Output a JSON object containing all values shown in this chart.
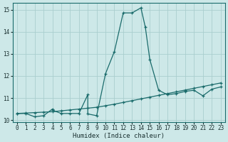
{
  "title": "",
  "xlabel": "Humidex (Indice chaleur)",
  "ylabel": "",
  "background_color": "#cde8e8",
  "line_color": "#1a6b6b",
  "grid_color": "#aacece",
  "line1_x": [
    0,
    1,
    2,
    3,
    4,
    4,
    5,
    6,
    7,
    8,
    8,
    9,
    10,
    11,
    12,
    13,
    14,
    14.5,
    15,
    16,
    17,
    18,
    19,
    20,
    21,
    22,
    23
  ],
  "line1_y": [
    10.3,
    10.3,
    10.15,
    10.2,
    10.5,
    10.45,
    10.3,
    10.3,
    10.3,
    11.15,
    10.28,
    10.2,
    12.1,
    13.1,
    14.85,
    14.85,
    15.08,
    14.2,
    12.75,
    11.35,
    11.15,
    11.2,
    11.3,
    11.35,
    11.1,
    11.4,
    11.5
  ],
  "line2_x": [
    0,
    1,
    2,
    3,
    4,
    5,
    6,
    7,
    8,
    9,
    10,
    11,
    12,
    13,
    14,
    15,
    16,
    17,
    18,
    19,
    20,
    21,
    22,
    23
  ],
  "line2_y": [
    10.3,
    10.32,
    10.34,
    10.36,
    10.38,
    10.42,
    10.46,
    10.5,
    10.54,
    10.58,
    10.65,
    10.72,
    10.8,
    10.88,
    10.96,
    11.04,
    11.12,
    11.2,
    11.28,
    11.36,
    11.44,
    11.52,
    11.6,
    11.68
  ],
  "xlim": [
    -0.5,
    23.5
  ],
  "ylim": [
    9.9,
    15.3
  ],
  "yticks": [
    10,
    11,
    12,
    13,
    14,
    15
  ],
  "xticks": [
    0,
    1,
    2,
    3,
    4,
    5,
    6,
    7,
    8,
    9,
    10,
    11,
    12,
    13,
    14,
    15,
    16,
    17,
    18,
    19,
    20,
    21,
    22,
    23
  ]
}
